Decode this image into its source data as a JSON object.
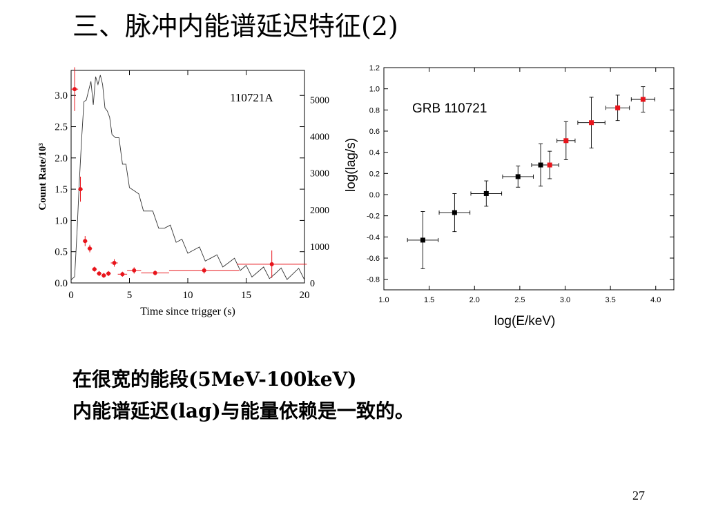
{
  "slide": {
    "title": "三、脉冲内能谱延迟特征(2)",
    "caption_line1": "在很宽的能段(5MeV-100keV)",
    "caption_line2": "内能谱延迟(lag)与能量依赖是一致的。",
    "page_number": "27"
  },
  "chart_data": [
    {
      "type": "line",
      "annotation": "110721A",
      "xlabel": "Time since trigger (s)",
      "ylabel": "Count Rate/10³",
      "xlim": [
        0,
        20
      ],
      "ylim": [
        0,
        3.4
      ],
      "x_ticks": [
        0,
        5,
        10,
        15,
        20
      ],
      "x_tick_labels": [
        "0",
        "5",
        "10",
        "15",
        "20"
      ],
      "y_ticks": [
        0,
        0.5,
        1.0,
        1.5,
        2.0,
        2.5,
        3.0
      ],
      "y_tick_labels": [
        "0.0",
        "0.5",
        "1.0",
        "1.5",
        "2.0",
        "2.5",
        "3.0"
      ],
      "y2_ticks": [
        0,
        1000,
        2000,
        3000,
        4000,
        5000
      ],
      "y2_tick_labels": [
        "0",
        "1000",
        "2000",
        "3000",
        "4000",
        "5000"
      ],
      "y2lim": [
        0,
        5800
      ],
      "series": [
        {
          "style": "black-line",
          "x": [
            0,
            0.3,
            0.5,
            0.7,
            0.9,
            1.1,
            1.3,
            1.5,
            1.7,
            1.9,
            2.1,
            2.3,
            2.5,
            2.7,
            2.9,
            3.1,
            3.3,
            3.5,
            3.8,
            4.1,
            4.4,
            4.7,
            5.0,
            5.4,
            5.8,
            6.2,
            6.6,
            7.0,
            7.5,
            8.0,
            8.5,
            9.0,
            9.5,
            10.0,
            10.5,
            11.0,
            11.5,
            12.0,
            12.5,
            13.0,
            13.5,
            14.0,
            14.5,
            15.0,
            15.5,
            16.0,
            16.5,
            17.0,
            17.5,
            18.0,
            18.5,
            19.0,
            19.5,
            20.0
          ],
          "y": [
            0.05,
            0.1,
            0.8,
            1.6,
            2.3,
            2.8,
            3.0,
            3.05,
            3.1,
            2.9,
            3.25,
            3.3,
            3.35,
            3.1,
            2.9,
            2.75,
            2.55,
            2.45,
            2.3,
            2.2,
            1.95,
            1.85,
            1.65,
            1.5,
            1.35,
            1.25,
            1.15,
            1.05,
            0.95,
            0.85,
            0.8,
            0.7,
            0.65,
            0.6,
            0.55,
            0.5,
            0.45,
            0.4,
            0.35,
            0.33,
            0.3,
            0.27,
            0.25,
            0.23,
            0.22,
            0.2,
            0.18,
            0.17,
            0.15,
            0.14,
            0.13,
            0.12,
            0.11,
            0.1
          ]
        },
        {
          "style": "red-points",
          "x": [
            0.3,
            0.8,
            1.2,
            1.6,
            2.0,
            2.4,
            2.8,
            3.2,
            3.7,
            4.4,
            5.4,
            7.2,
            11.4,
            17.2
          ],
          "y": [
            3.1,
            1.5,
            0.67,
            0.55,
            0.22,
            0.15,
            0.12,
            0.15,
            0.32,
            0.14,
            0.2,
            0.16,
            0.2,
            0.3
          ],
          "yerr": [
            0.35,
            0.2,
            0.08,
            0.06,
            0.04,
            0.04,
            0.04,
            0.04,
            0.06,
            0.04,
            0.05,
            0.04,
            0.05,
            0.22
          ],
          "xerr": [
            0.3,
            0.2,
            0.2,
            0.2,
            0.2,
            0.2,
            0.2,
            0.2,
            0.3,
            0.4,
            0.6,
            1.2,
            3.0,
            3.0
          ]
        }
      ]
    },
    {
      "type": "scatter",
      "annotation": "GRB 110721",
      "xlabel": "log(E/keV)",
      "ylabel": "log(lag/s)",
      "xlim": [
        1.0,
        4.2
      ],
      "ylim": [
        -0.9,
        1.2
      ],
      "x_ticks": [
        1.0,
        1.5,
        2.0,
        2.5,
        3.0,
        3.5,
        4.0
      ],
      "x_tick_labels": [
        "1.0",
        "1.5",
        "2.0",
        "2.5",
        "3.0",
        "3.5",
        "4.0"
      ],
      "y_ticks": [
        -0.8,
        -0.6,
        -0.4,
        -0.2,
        0.0,
        0.2,
        0.4,
        0.6,
        0.8,
        1.0,
        1.2
      ],
      "y_tick_labels": [
        "-0.8",
        "-0.6",
        "-0.4",
        "-0.2",
        "0.0",
        "0.2",
        "0.4",
        "0.6",
        "0.8",
        "1.0",
        "1.2"
      ],
      "series": [
        {
          "color": "#000000",
          "x": [
            1.43,
            1.78,
            2.13,
            2.48,
            2.73
          ],
          "y": [
            -0.43,
            -0.17,
            0.01,
            0.17,
            0.28
          ],
          "xerr": [
            0.17,
            0.17,
            0.17,
            0.17,
            0.1
          ],
          "yerr": [
            0.27,
            0.18,
            0.12,
            0.1,
            0.2
          ]
        },
        {
          "color": "#e8141b",
          "x": [
            2.83,
            3.01,
            3.29,
            3.58,
            3.86
          ],
          "y": [
            0.28,
            0.51,
            0.68,
            0.82,
            0.9
          ],
          "xerr": [
            0.1,
            0.1,
            0.15,
            0.13,
            0.13
          ],
          "yerr": [
            0.13,
            0.18,
            0.24,
            0.12,
            0.12
          ]
        }
      ]
    }
  ]
}
